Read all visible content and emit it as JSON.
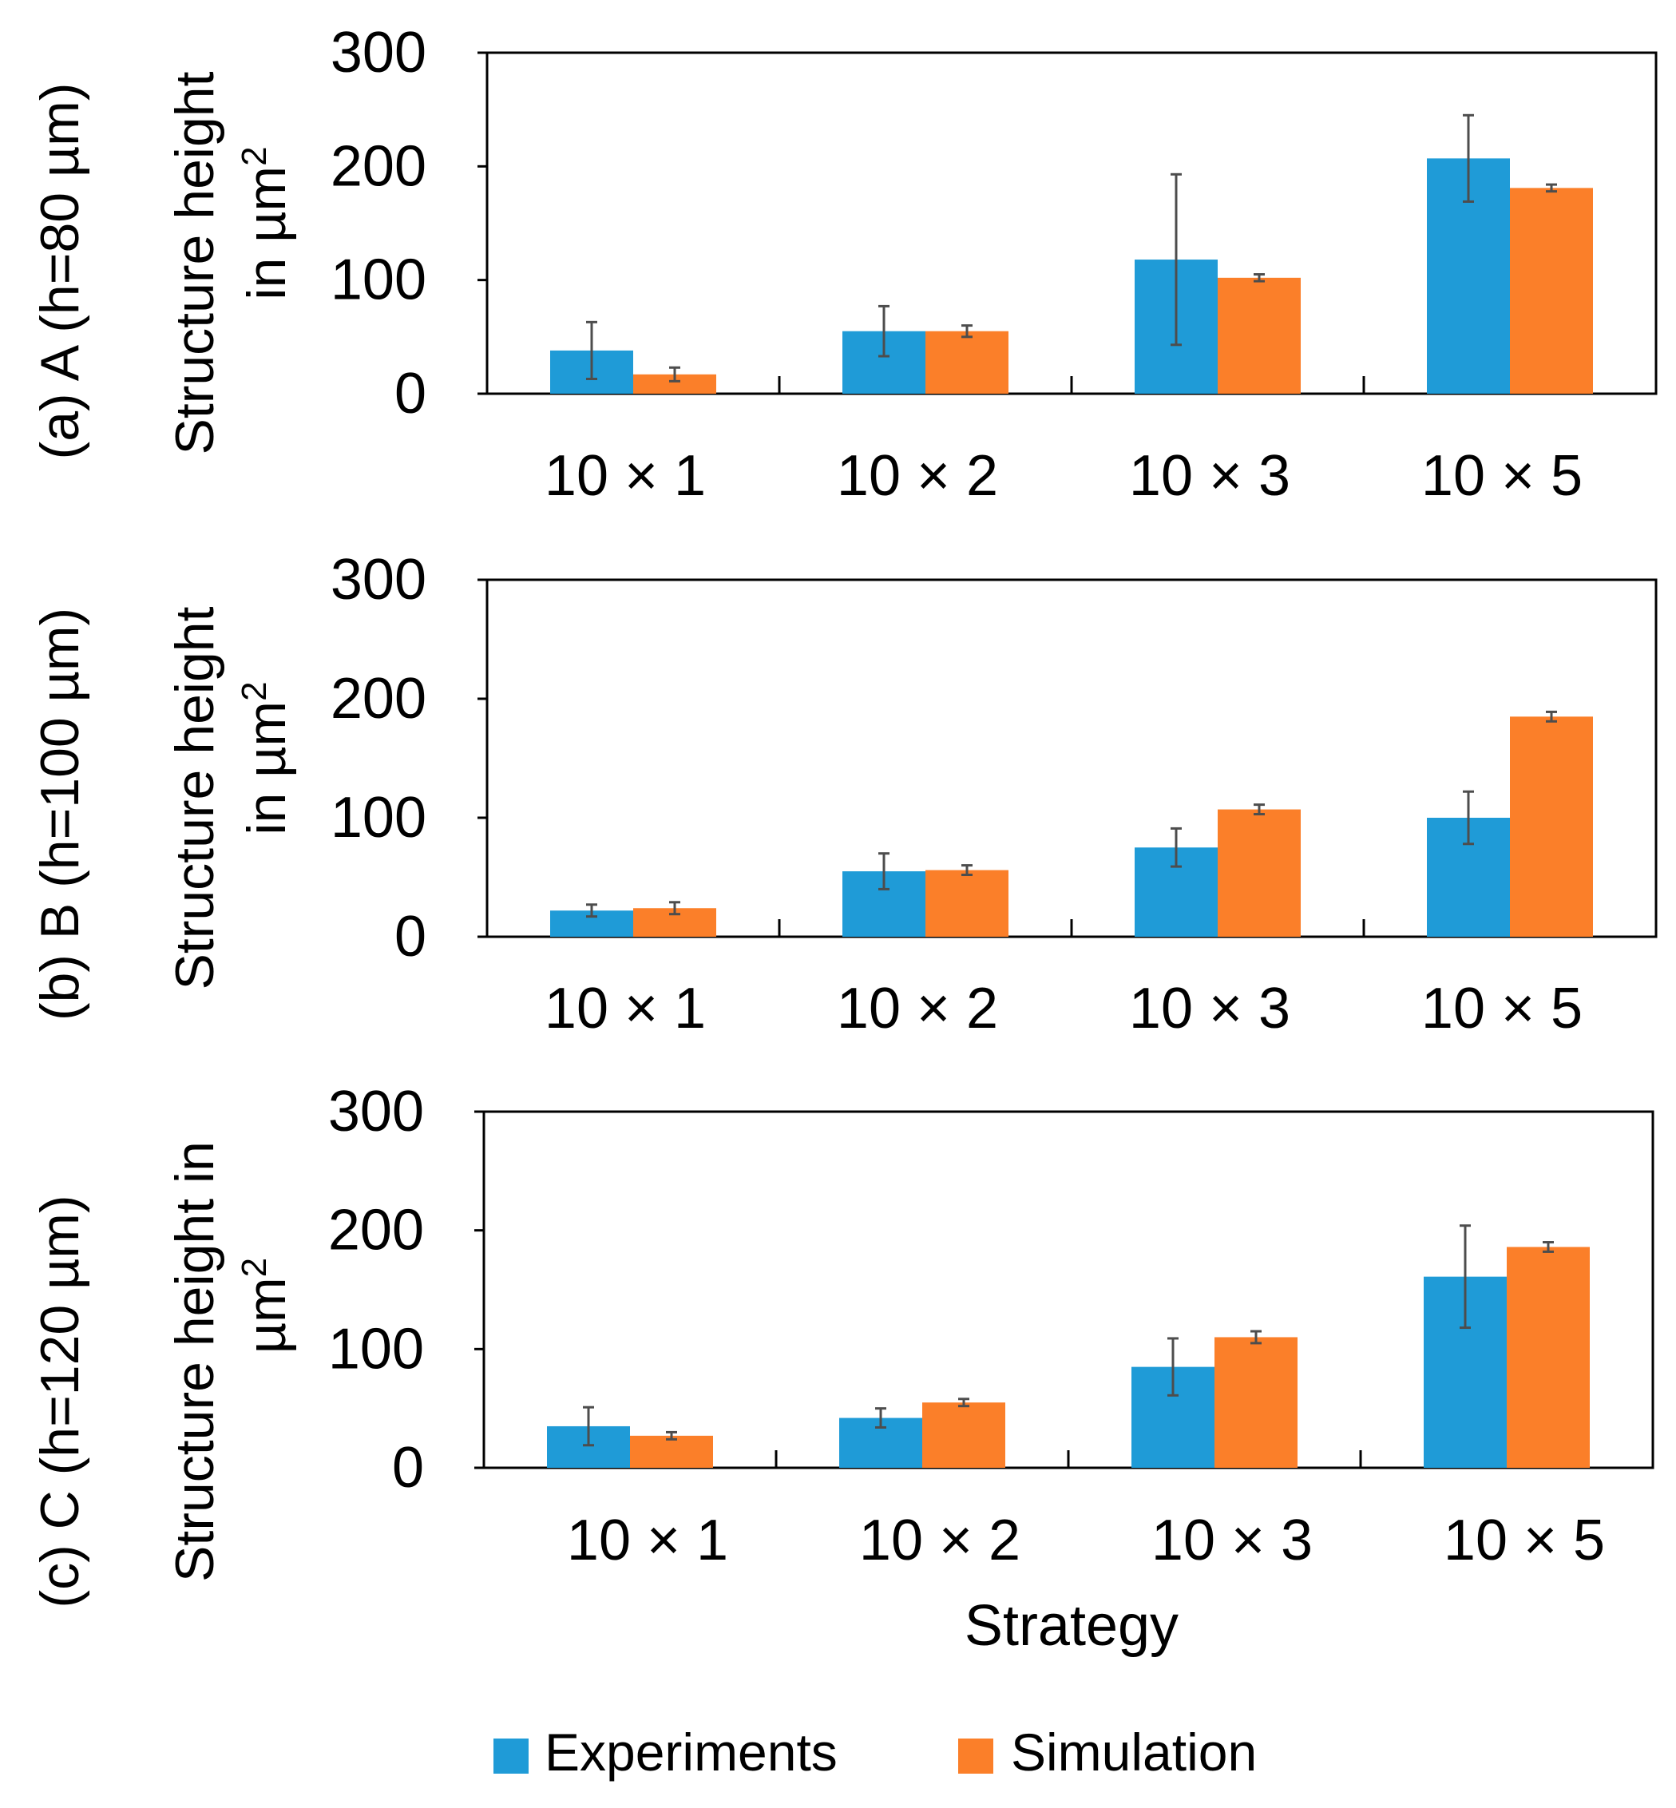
{
  "colors": {
    "experiments": "#1f9bd7",
    "simulation": "#fb7f29",
    "error_bar": "#4d4d4d",
    "axis": "#000000"
  },
  "legend": {
    "experiments_label": "Experiments",
    "simulation_label": "Simulation"
  },
  "chart_data": [
    {
      "type": "bar",
      "panel_label": "(a) A (h=80 µm)",
      "ylabel_lines": [
        "Structure height",
        "in µm"
      ],
      "ylabel_sup": "2",
      "xlabel": "",
      "categories": [
        "10 × 1",
        "10 × 2",
        "10 × 3",
        "10 × 5"
      ],
      "ylim": [
        0,
        300
      ],
      "yticks": [
        0,
        100,
        200,
        300
      ],
      "series": [
        {
          "name": "Experiments",
          "values": [
            38,
            55,
            118,
            207
          ],
          "errors": [
            25,
            22,
            75,
            38
          ]
        },
        {
          "name": "Simulation",
          "values": [
            17,
            55,
            102,
            181
          ],
          "errors": [
            6,
            5,
            3,
            3
          ]
        }
      ]
    },
    {
      "type": "bar",
      "panel_label": "(b) B (h=100 µm)",
      "ylabel_lines": [
        "Structure height",
        "in µm"
      ],
      "ylabel_sup": "2",
      "xlabel": "",
      "categories": [
        "10 × 1",
        "10 × 2",
        "10 × 3",
        "10 × 5"
      ],
      "ylim": [
        0,
        300
      ],
      "yticks": [
        0,
        100,
        200,
        300
      ],
      "series": [
        {
          "name": "Experiments",
          "values": [
            22,
            55,
            75,
            100
          ],
          "errors": [
            5,
            15,
            16,
            22
          ]
        },
        {
          "name": "Simulation",
          "values": [
            24,
            56,
            107,
            185
          ],
          "errors": [
            5,
            4,
            4,
            4
          ]
        }
      ]
    },
    {
      "type": "bar",
      "panel_label": "(c) C (h=120 µm)",
      "ylabel_lines": [
        "Structure height in",
        "µm"
      ],
      "ylabel_sup": "2",
      "xlabel": "Strategy",
      "categories": [
        "10 × 1",
        "10 × 2",
        "10 × 3",
        "10 × 5"
      ],
      "ylim": [
        0,
        300
      ],
      "yticks": [
        0,
        100,
        200,
        300
      ],
      "series": [
        {
          "name": "Experiments",
          "values": [
            35,
            42,
            85,
            161
          ],
          "errors": [
            16,
            8,
            24,
            43
          ]
        },
        {
          "name": "Simulation",
          "values": [
            27,
            55,
            110,
            186
          ],
          "errors": [
            3,
            3,
            5,
            4
          ]
        }
      ]
    }
  ]
}
